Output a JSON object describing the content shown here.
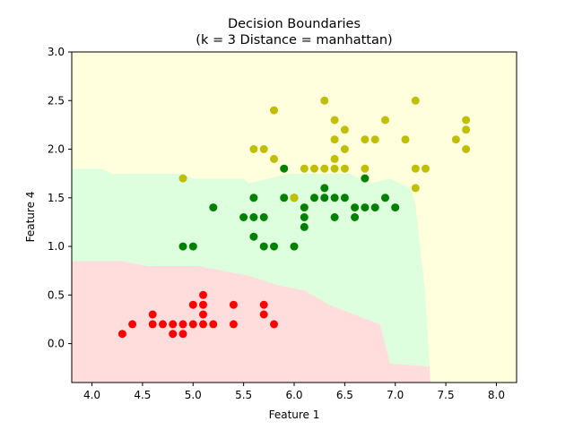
{
  "chart_data": {
    "type": "scatter",
    "title": "Decision Boundaries",
    "subtitle": "(k = 3  Distance = manhattan)",
    "xlabel": "Feature 1",
    "ylabel": "Feature 4",
    "xlim": [
      3.8,
      8.2
    ],
    "ylim": [
      -0.4,
      3.0
    ],
    "xticks": [
      "4.0",
      "4.5",
      "5.0",
      "5.5",
      "6.0",
      "6.5",
      "7.0",
      "7.5",
      "8.0"
    ],
    "yticks": [
      "0.0",
      "0.5",
      "1.0",
      "1.5",
      "2.0",
      "2.5",
      "3.0"
    ],
    "grid": false,
    "regions": [
      {
        "class": "red",
        "color": "#ffdddd",
        "polygon": [
          [
            3.8,
            -0.4
          ],
          [
            3.8,
            0.85
          ],
          [
            4.3,
            0.85
          ],
          [
            4.55,
            0.8
          ],
          [
            5.05,
            0.8
          ],
          [
            5.3,
            0.75
          ],
          [
            5.55,
            0.7
          ],
          [
            5.85,
            0.6
          ],
          [
            6.1,
            0.55
          ],
          [
            6.35,
            0.4
          ],
          [
            6.6,
            0.3
          ],
          [
            6.85,
            0.2
          ],
          [
            6.95,
            -0.2
          ],
          [
            7.5,
            -0.25
          ],
          [
            7.55,
            -0.4
          ]
        ]
      },
      {
        "class": "green",
        "color": "#ddffdd",
        "polygon": [
          [
            3.8,
            0.85
          ],
          [
            3.8,
            1.8
          ],
          [
            4.1,
            1.8
          ],
          [
            4.2,
            1.75
          ],
          [
            4.9,
            1.75
          ],
          [
            5.0,
            1.7
          ],
          [
            5.5,
            1.7
          ],
          [
            5.55,
            1.65
          ],
          [
            5.95,
            1.75
          ],
          [
            6.3,
            1.75
          ],
          [
            6.55,
            1.75
          ],
          [
            6.75,
            1.65
          ],
          [
            6.95,
            1.7
          ],
          [
            7.15,
            1.6
          ],
          [
            7.2,
            1.45
          ],
          [
            7.3,
            0.5
          ],
          [
            7.35,
            -0.4
          ],
          [
            7.55,
            -0.4
          ],
          [
            7.5,
            -0.25
          ],
          [
            6.95,
            -0.2
          ],
          [
            6.85,
            0.2
          ],
          [
            6.6,
            0.3
          ],
          [
            6.35,
            0.4
          ],
          [
            6.1,
            0.55
          ],
          [
            5.85,
            0.6
          ],
          [
            5.55,
            0.7
          ],
          [
            5.3,
            0.75
          ],
          [
            5.05,
            0.8
          ],
          [
            4.55,
            0.8
          ],
          [
            4.3,
            0.85
          ]
        ]
      },
      {
        "class": "yellow",
        "color": "#ffffdd",
        "polygon": [
          [
            3.8,
            1.8
          ],
          [
            3.8,
            3.0
          ],
          [
            8.2,
            3.0
          ],
          [
            8.2,
            -0.4
          ],
          [
            7.35,
            -0.4
          ],
          [
            7.3,
            0.5
          ],
          [
            7.2,
            1.45
          ],
          [
            7.15,
            1.6
          ],
          [
            6.95,
            1.7
          ],
          [
            6.75,
            1.65
          ],
          [
            6.55,
            1.75
          ],
          [
            6.3,
            1.75
          ],
          [
            5.95,
            1.75
          ],
          [
            5.55,
            1.65
          ],
          [
            5.5,
            1.7
          ],
          [
            5.0,
            1.7
          ],
          [
            4.9,
            1.75
          ],
          [
            4.2,
            1.75
          ],
          [
            4.1,
            1.8
          ]
        ]
      }
    ],
    "series": [
      {
        "color": "#ff0000",
        "points": [
          [
            4.3,
            0.1
          ],
          [
            4.4,
            0.2
          ],
          [
            4.6,
            0.2
          ],
          [
            4.6,
            0.3
          ],
          [
            4.7,
            0.2
          ],
          [
            4.8,
            0.1
          ],
          [
            4.8,
            0.2
          ],
          [
            4.9,
            0.1
          ],
          [
            4.9,
            0.2
          ],
          [
            5.0,
            0.2
          ],
          [
            5.0,
            0.4
          ],
          [
            5.1,
            0.2
          ],
          [
            5.1,
            0.3
          ],
          [
            5.1,
            0.4
          ],
          [
            5.1,
            0.5
          ],
          [
            5.2,
            0.2
          ],
          [
            5.4,
            0.2
          ],
          [
            5.4,
            0.4
          ],
          [
            5.7,
            0.3
          ],
          [
            5.7,
            0.4
          ],
          [
            5.8,
            0.2
          ]
        ]
      },
      {
        "color": "#008000",
        "points": [
          [
            4.9,
            1.0
          ],
          [
            5.0,
            1.0
          ],
          [
            5.2,
            1.4
          ],
          [
            5.5,
            1.3
          ],
          [
            5.6,
            1.1
          ],
          [
            5.6,
            1.3
          ],
          [
            5.6,
            1.5
          ],
          [
            5.7,
            1.0
          ],
          [
            5.7,
            1.3
          ],
          [
            5.8,
            1.0
          ],
          [
            5.9,
            1.5
          ],
          [
            5.9,
            1.8
          ],
          [
            6.0,
            1.0
          ],
          [
            6.0,
            1.5
          ],
          [
            6.1,
            1.2
          ],
          [
            6.1,
            1.3
          ],
          [
            6.1,
            1.4
          ],
          [
            6.2,
            1.5
          ],
          [
            6.3,
            1.5
          ],
          [
            6.3,
            1.6
          ],
          [
            6.4,
            1.3
          ],
          [
            6.4,
            1.5
          ],
          [
            6.5,
            1.5
          ],
          [
            6.6,
            1.3
          ],
          [
            6.6,
            1.4
          ],
          [
            6.7,
            1.4
          ],
          [
            6.7,
            1.7
          ],
          [
            6.8,
            1.4
          ],
          [
            6.9,
            1.5
          ],
          [
            7.0,
            1.4
          ]
        ]
      },
      {
        "color": "#bfbf00",
        "points": [
          [
            4.9,
            1.7
          ],
          [
            5.6,
            2.0
          ],
          [
            5.7,
            2.0
          ],
          [
            5.8,
            1.9
          ],
          [
            5.8,
            2.4
          ],
          [
            6.0,
            1.5
          ],
          [
            6.1,
            1.8
          ],
          [
            6.2,
            1.8
          ],
          [
            6.3,
            1.8
          ],
          [
            6.3,
            2.5
          ],
          [
            6.4,
            1.8
          ],
          [
            6.4,
            1.9
          ],
          [
            6.4,
            2.1
          ],
          [
            6.4,
            2.3
          ],
          [
            6.5,
            1.8
          ],
          [
            6.5,
            2.0
          ],
          [
            6.5,
            2.2
          ],
          [
            6.7,
            1.8
          ],
          [
            6.7,
            2.1
          ],
          [
            6.8,
            2.1
          ],
          [
            6.9,
            2.3
          ],
          [
            7.1,
            2.1
          ],
          [
            7.2,
            1.6
          ],
          [
            7.2,
            1.8
          ],
          [
            7.2,
            2.5
          ],
          [
            7.3,
            1.8
          ],
          [
            7.6,
            2.1
          ],
          [
            7.7,
            2.0
          ],
          [
            7.7,
            2.2
          ],
          [
            7.7,
            2.3
          ]
        ]
      }
    ]
  }
}
